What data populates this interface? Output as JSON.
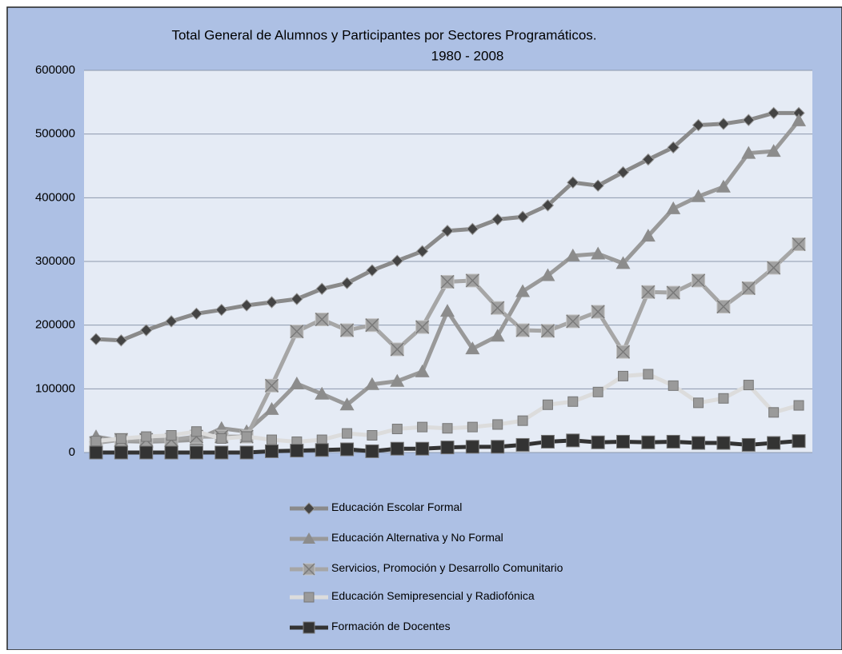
{
  "chart_data": {
    "type": "line",
    "title": "Total General de Alumnos y Participantes por Sectores Programáticos.",
    "subtitle": "1980 - 2008",
    "categories": [
      null,
      null,
      null,
      null,
      null,
      null,
      null,
      null,
      null,
      null,
      null,
      null,
      null,
      null,
      null,
      null,
      null,
      null,
      null,
      null,
      null,
      null,
      null,
      null,
      null,
      null,
      null,
      null,
      null
    ],
    "ylim": [
      0,
      600000
    ],
    "yticks": [
      0,
      100000,
      200000,
      300000,
      400000,
      500000,
      600000
    ],
    "grid": true,
    "legend": "bottom",
    "series": [
      {
        "name": "Educación Escolar Formal",
        "color": "#8a8a8a",
        "marker": "diamond",
        "marker_color": "#444444",
        "values": [
          178000,
          176000,
          192000,
          206000,
          218000,
          224000,
          231000,
          236000,
          241000,
          257000,
          266000,
          286000,
          301000,
          316000,
          348000,
          351000,
          366000,
          370000,
          388000,
          424000,
          419000,
          440000,
          460000,
          479000,
          514000,
          516000,
          522000,
          533000,
          533000
        ]
      },
      {
        "name": "Educación Alternativa y No Formal",
        "color": "#999999",
        "marker": "triangle",
        "marker_color": "#8c8c8c",
        "values": [
          25000,
          18000,
          17000,
          18000,
          20000,
          38000,
          33000,
          68000,
          108000,
          92000,
          75000,
          107000,
          112000,
          127000,
          222000,
          163000,
          183000,
          253000,
          278000,
          309000,
          312000,
          297000,
          340000,
          383000,
          402000,
          417000,
          470000,
          473000,
          521000
        ]
      },
      {
        "name": "Servicios, Promoción y Desarrollo Comunitario",
        "color": "#a6a6a6",
        "marker": "xsquare",
        "marker_color": "#a0a0a0",
        "values": [
          15000,
          20000,
          20000,
          20000,
          25000,
          25000,
          25000,
          105000,
          190000,
          209000,
          192000,
          200000,
          162000,
          197000,
          268000,
          270000,
          227000,
          192000,
          191000,
          206000,
          221000,
          158000,
          252000,
          251000,
          270000,
          229000,
          258000,
          290000,
          327000
        ]
      },
      {
        "name": "Educación Semipresencial y Radiofónica",
        "color": "#dcdcdc",
        "marker": "square",
        "marker_color": "#9a9a9a",
        "values": [
          18000,
          22000,
          25000,
          27000,
          33000,
          22000,
          25000,
          20000,
          17000,
          20000,
          30000,
          27000,
          37000,
          40000,
          38000,
          40000,
          44000,
          50000,
          75000,
          80000,
          95000,
          120000,
          123000,
          105000,
          78000,
          85000,
          106000,
          63000,
          74000
        ]
      },
      {
        "name": "Formación de Docentes",
        "color": "#333333",
        "marker": "square",
        "marker_color": "#333333",
        "values": [
          0,
          0,
          0,
          0,
          0,
          0,
          0,
          2000,
          3000,
          4000,
          5000,
          2000,
          6000,
          6000,
          8000,
          9000,
          9000,
          12000,
          17000,
          19000,
          16000,
          17000,
          16000,
          17000,
          15000,
          15000,
          12000,
          15000,
          18000
        ]
      }
    ]
  }
}
